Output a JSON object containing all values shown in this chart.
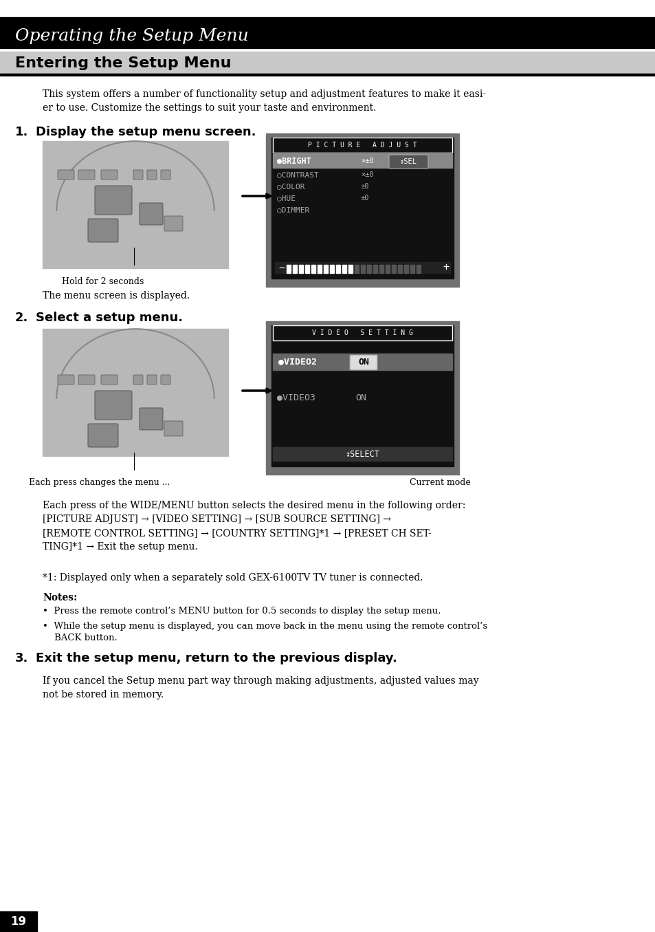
{
  "page_number": "19",
  "header_title": "Operating the Setup Menu",
  "header_bg": "#000000",
  "header_text_color": "#ffffff",
  "section_title": "Entering the Setup Menu",
  "section_bg": "#d0d0d0",
  "body_bg": "#ffffff",
  "intro_text": "This system offers a number of functionality setup and adjustment features to make it easi-\ner to use. Customize the settings to suit your taste and environment.",
  "step1_label": "1.",
  "step1_text": "Display the setup menu screen.",
  "step1_caption1": "Hold for 2 seconds",
  "step1_caption2": "The menu screen is displayed.",
  "step2_label": "2.",
  "step2_text": "Select a setup menu.",
  "step2_caption1": "Each press changes the menu ...",
  "step2_caption2": "Current mode",
  "body_text1": "Each press of the WIDE/MENU button selects the desired menu in the following order:\n[PICTURE ADJUST] → [VIDEO SETTING] → [SUB SOURCE SETTING] →\n[REMOTE CONTROL SETTING] → [COUNTRY SETTING]*1 → [PRESET CH SET-\nTING]*1 → Exit the setup menu.",
  "footnote": "*1: Displayed only when a separately sold GEX-6100TV TV tuner is connected.",
  "notes_title": "Notes:",
  "note1": "•  Press the remote control’s MENU button for 0.5 seconds to display the setup menu.",
  "note2": "•  While the setup menu is displayed, you can move back in the menu using the remote control’s\n    BACK button.",
  "step3_label": "3.",
  "step3_text": "Exit the setup menu, return to the previous display.",
  "step3_body": "If you cancel the Setup menu part way through making adjustments, adjusted values may\nnot be stored in memory.",
  "pic_adjust_title": "P I C T U R E   A D J U S T",
  "pic_adjust_sel": "↕SEL",
  "video_setting_title": "V I D E O   S E T T I N G",
  "video_sel": "↕SELECT"
}
